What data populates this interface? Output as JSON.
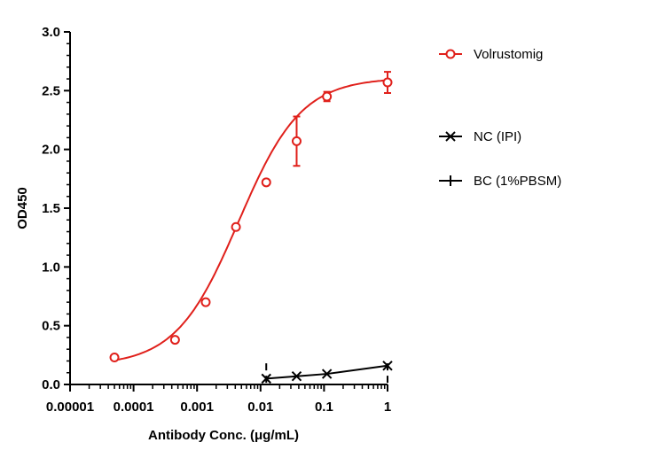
{
  "chart_data": {
    "type": "scatter",
    "title": "",
    "xlabel": "Antibody Conc. (μg/mL)",
    "ylabel": "OD450",
    "x_scale": "log",
    "xlim": [
      1e-05,
      1
    ],
    "ylim": [
      0,
      3.0
    ],
    "x_ticks": [
      1e-05,
      0.0001,
      0.001,
      0.01,
      0.1,
      1
    ],
    "x_tick_labels": [
      "0.00001",
      "0.0001",
      "0.001",
      "0.01",
      "0.1",
      "1"
    ],
    "y_ticks": [
      0,
      0.5,
      1.0,
      1.5,
      2.0,
      2.5,
      3.0
    ],
    "y_tick_labels": [
      "0.0",
      "0.5",
      "1.0",
      "1.5",
      "2.0",
      "2.5",
      "3.0"
    ],
    "grid": false,
    "legend_position": "right",
    "series": [
      {
        "name": "Volrustomig",
        "color": "#e0201b",
        "marker": "open-circle",
        "x": [
          5e-05,
          0.00045,
          0.00137,
          0.0041,
          0.0123,
          0.037,
          0.111,
          1
        ],
        "y": [
          0.23,
          0.38,
          0.7,
          1.34,
          1.72,
          2.07,
          2.45,
          2.57
        ],
        "error": [
          0.0,
          0.0,
          0.0,
          0.0,
          0.0,
          0.21,
          0.04,
          0.09
        ],
        "fit": {
          "bottom": 0.16,
          "top": 2.61,
          "ec50": 0.0045,
          "hill": 0.88
        }
      },
      {
        "name": "NC (IPI)",
        "color": "#000000",
        "marker": "x",
        "x": [
          0.0123,
          0.037,
          0.111,
          1
        ],
        "y": [
          0.05,
          0.07,
          0.09,
          0.16
        ]
      },
      {
        "name": "BC (1%PBSM)",
        "color": "#000000",
        "marker": "plus",
        "x": [
          0.0123,
          1
        ],
        "y": [
          0.05,
          0.05
        ]
      }
    ]
  }
}
